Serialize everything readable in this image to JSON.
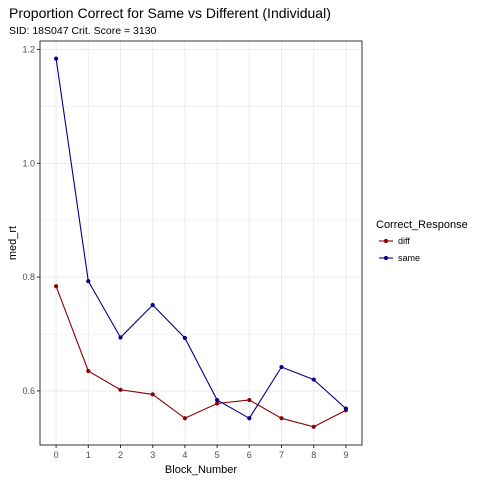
{
  "chart_data": {
    "type": "line",
    "title": "Proportion Correct for Same vs Different (Individual)",
    "subtitle": "SID:  18S047 Crit. Score =  3130",
    "xlabel": "Block_Number",
    "ylabel": "med_rt",
    "x": [
      0,
      1,
      2,
      3,
      4,
      5,
      6,
      7,
      8,
      9
    ],
    "xlim": [
      -0.5,
      9.5
    ],
    "ylim": [
      0.505,
      1.215
    ],
    "x_ticks": [
      "0",
      "1",
      "2",
      "3",
      "4",
      "5",
      "6",
      "7",
      "8",
      "9"
    ],
    "y_ticks": [
      "0.6",
      "0.8",
      "1.0",
      "1.2"
    ],
    "y_tick_values": [
      0.6,
      0.8,
      1.0,
      1.2
    ],
    "grid": true,
    "legend_title": "Correct_Response",
    "legend_position": "right",
    "series": [
      {
        "name": "diff",
        "color": "#8b0000",
        "values": [
          0.784,
          0.635,
          0.602,
          0.594,
          0.552,
          0.578,
          0.584,
          0.552,
          0.537,
          0.566
        ]
      },
      {
        "name": "same",
        "color": "#00008b",
        "values": [
          1.184,
          0.793,
          0.694,
          0.751,
          0.693,
          0.584,
          0.552,
          0.642,
          0.62,
          0.569
        ]
      }
    ]
  }
}
